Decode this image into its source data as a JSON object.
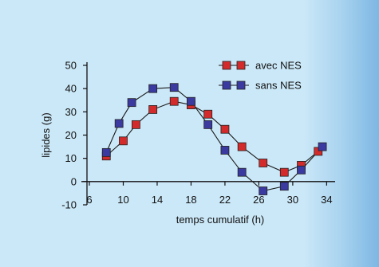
{
  "chart_data": {
    "type": "line",
    "xlabel": "temps cumulatif (h)",
    "ylabel": "lipides (g)",
    "xlim": [
      6,
      35
    ],
    "ylim": [
      -10,
      50
    ],
    "x_ticks": [
      6,
      10,
      14,
      18,
      22,
      26,
      30,
      34
    ],
    "y_ticks": [
      -10,
      0,
      10,
      20,
      30,
      40,
      50
    ],
    "legend_position": "top-right",
    "series": [
      {
        "name": "avec NES",
        "color": "#d32b2b",
        "points": [
          [
            8,
            11
          ],
          [
            10,
            17.5
          ],
          [
            11.5,
            24.5
          ],
          [
            13.5,
            31
          ],
          [
            16,
            34.5
          ],
          [
            18,
            33
          ],
          [
            20,
            29
          ],
          [
            22,
            22.5
          ],
          [
            24,
            15
          ],
          [
            26.5,
            8
          ],
          [
            29,
            4
          ],
          [
            31,
            7
          ],
          [
            33,
            13
          ]
        ]
      },
      {
        "name": "sans NES",
        "color": "#3a3aa0",
        "points": [
          [
            8,
            12.5
          ],
          [
            9.5,
            25
          ],
          [
            11,
            34
          ],
          [
            13.5,
            40
          ],
          [
            16,
            40.5
          ],
          [
            18,
            34.5
          ],
          [
            20,
            24.5
          ],
          [
            22,
            13.5
          ],
          [
            24,
            4
          ],
          [
            26.5,
            -4
          ],
          [
            29,
            -2
          ],
          [
            31,
            5
          ],
          [
            33.5,
            15
          ]
        ]
      }
    ]
  }
}
